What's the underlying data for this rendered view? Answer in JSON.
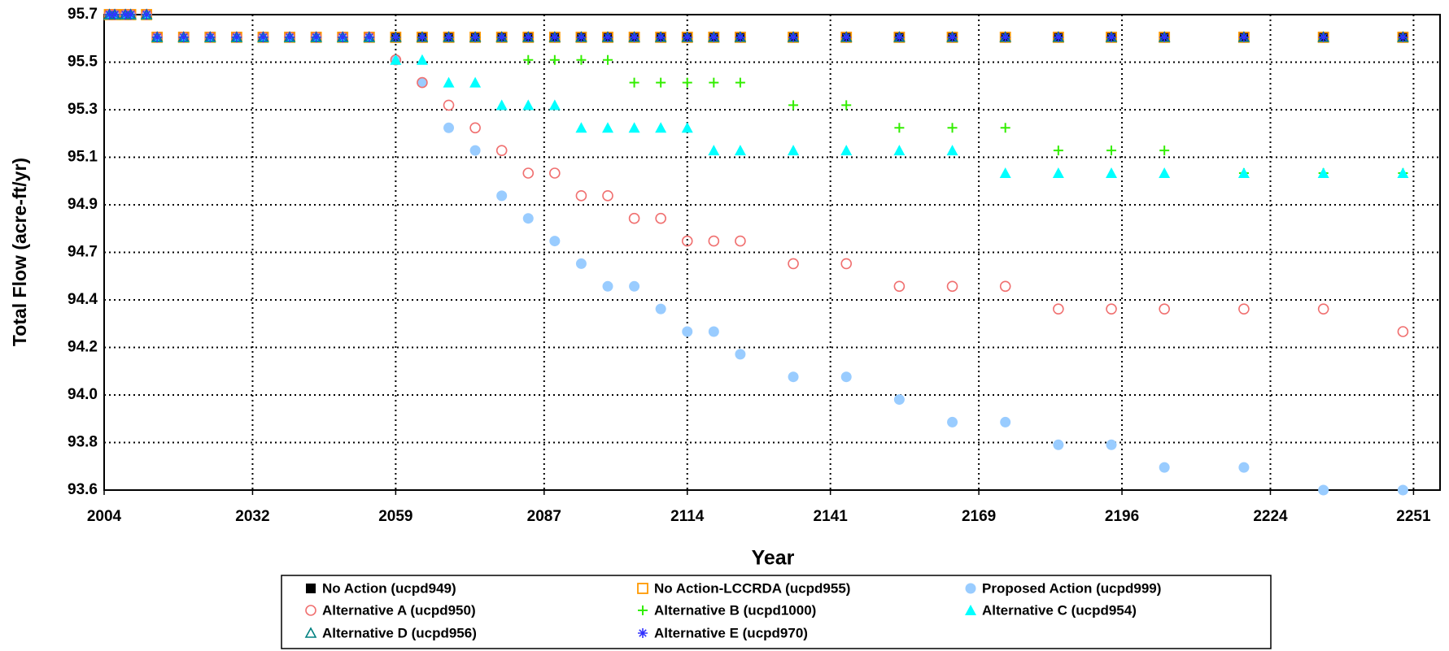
{
  "chart_data": {
    "type": "scatter",
    "x_label": "Year",
    "y_label": "Total Flow (acre-ft/yr)",
    "xlim": [
      2004,
      2256
    ],
    "ylim": [
      93.6,
      95.7
    ],
    "xticks": [
      2004,
      2032,
      2059,
      2087,
      2114,
      2141,
      2169,
      2196,
      2224,
      2251
    ],
    "yticks": [
      93.6,
      {
        "value": 93.81,
        "label": "93.8"
      },
      {
        "value": 94.02,
        "label": "94.0"
      },
      {
        "value": 94.23,
        "label": "94.2"
      },
      {
        "value": 94.44,
        "label": "94.4"
      },
      {
        "value": 94.65,
        "label": "94.7"
      },
      {
        "value": 94.86,
        "label": "94.9"
      },
      {
        "value": 95.07,
        "label": "95.1"
      },
      {
        "value": 95.28,
        "label": "95.3"
      },
      {
        "value": 95.49,
        "label": "95.5"
      },
      95.7
    ],
    "grid": true,
    "x": [
      2005,
      2006,
      2008,
      2009,
      2012,
      2014,
      2019,
      2024,
      2029,
      2034,
      2039,
      2044,
      2049,
      2054,
      2059,
      2064,
      2069,
      2074,
      2079,
      2084,
      2089,
      2094,
      2099,
      2104,
      2109,
      2114,
      2119,
      2124,
      2134,
      2144,
      2154,
      2164,
      2174,
      2184,
      2194,
      2204,
      2219,
      2234,
      2249
    ],
    "series": [
      {
        "name": "No Action (ucpd949)",
        "color": "#000000",
        "marker": "square",
        "values": [
          95.7,
          95.7,
          95.7,
          95.7,
          95.7,
          95.6,
          95.6,
          95.6,
          95.6,
          95.6,
          95.6,
          95.6,
          95.6,
          95.6,
          95.6,
          95.6,
          95.6,
          95.6,
          95.6,
          95.6,
          95.6,
          95.6,
          95.6,
          95.6,
          95.6,
          95.6,
          95.6,
          95.6,
          95.6,
          95.6,
          95.6,
          95.6,
          95.6,
          95.6,
          95.6,
          95.6,
          95.6,
          95.6,
          95.6
        ]
      },
      {
        "name": "No Action-LCCRDA (ucpd955)",
        "color": "#ff9900",
        "marker": "square-open",
        "values": [
          95.7,
          95.7,
          95.7,
          95.7,
          95.7,
          95.6,
          95.6,
          95.6,
          95.6,
          95.6,
          95.6,
          95.6,
          95.6,
          95.6,
          95.6,
          95.6,
          95.6,
          95.6,
          95.6,
          95.6,
          95.6,
          95.6,
          95.6,
          95.6,
          95.6,
          95.6,
          95.6,
          95.6,
          95.6,
          95.6,
          95.6,
          95.6,
          95.6,
          95.6,
          95.6,
          95.6,
          95.6,
          95.6,
          95.6
        ]
      },
      {
        "name": "Proposed Action (ucpd999)",
        "color": "#99ccff",
        "marker": "circle",
        "values": [
          95.7,
          95.7,
          95.7,
          95.7,
          95.7,
          95.6,
          95.6,
          95.6,
          95.6,
          95.6,
          95.6,
          95.6,
          95.6,
          95.6,
          95.5,
          95.4,
          95.2,
          95.1,
          94.9,
          94.8,
          94.7,
          94.6,
          94.5,
          94.5,
          94.4,
          94.3,
          94.3,
          94.2,
          94.1,
          94.1,
          94.0,
          93.9,
          93.9,
          93.8,
          93.8,
          93.7,
          93.7,
          93.6,
          93.6
        ]
      },
      {
        "name": "Alternative A (ucpd950)",
        "color": "#f07070",
        "marker": "circle-open",
        "values": [
          95.7,
          95.7,
          95.7,
          95.7,
          95.7,
          95.6,
          95.6,
          95.6,
          95.6,
          95.6,
          95.6,
          95.6,
          95.6,
          95.6,
          95.5,
          95.4,
          95.3,
          95.2,
          95.1,
          95.0,
          95.0,
          94.9,
          94.9,
          94.8,
          94.8,
          94.7,
          94.7,
          94.7,
          94.6,
          94.6,
          94.5,
          94.5,
          94.5,
          94.4,
          94.4,
          94.4,
          94.4,
          94.4,
          94.3
        ]
      },
      {
        "name": "Alternative B (ucpd1000)",
        "color": "#33ee00",
        "marker": "plus",
        "values": [
          95.7,
          95.7,
          95.7,
          95.7,
          95.7,
          95.6,
          95.6,
          95.6,
          95.6,
          95.6,
          95.6,
          95.6,
          95.6,
          95.6,
          95.6,
          95.6,
          95.6,
          95.6,
          95.6,
          95.5,
          95.5,
          95.5,
          95.5,
          95.4,
          95.4,
          95.4,
          95.4,
          95.4,
          95.3,
          95.3,
          95.2,
          95.2,
          95.2,
          95.1,
          95.1,
          95.1,
          95.0,
          95.0,
          95.0
        ]
      },
      {
        "name": "Alternative C (ucpd954)",
        "color": "#00ffff",
        "marker": "triangle",
        "values": [
          95.7,
          95.7,
          95.7,
          95.7,
          95.7,
          95.6,
          95.6,
          95.6,
          95.6,
          95.6,
          95.6,
          95.6,
          95.6,
          95.6,
          95.5,
          95.5,
          95.4,
          95.4,
          95.3,
          95.3,
          95.3,
          95.2,
          95.2,
          95.2,
          95.2,
          95.2,
          95.1,
          95.1,
          95.1,
          95.1,
          95.1,
          95.1,
          95.0,
          95.0,
          95.0,
          95.0,
          95.0,
          95.0,
          95.0
        ]
      },
      {
        "name": "Alternative D (ucpd956)",
        "color": "#008080",
        "marker": "triangle-open",
        "values": [
          95.7,
          95.7,
          95.7,
          95.7,
          95.7,
          95.6,
          95.6,
          95.6,
          95.6,
          95.6,
          95.6,
          95.6,
          95.6,
          95.6,
          95.6,
          95.6,
          95.6,
          95.6,
          95.6,
          95.6,
          95.6,
          95.6,
          95.6,
          95.6,
          95.6,
          95.6,
          95.6,
          95.6,
          95.6,
          95.6,
          95.6,
          95.6,
          95.6,
          95.6,
          95.6,
          95.6,
          95.6,
          95.6,
          95.6
        ]
      },
      {
        "name": "Alternative E (ucpd970)",
        "color": "#3333ff",
        "marker": "asterisk",
        "values": [
          95.7,
          95.7,
          95.7,
          95.7,
          95.7,
          95.6,
          95.6,
          95.6,
          95.6,
          95.6,
          95.6,
          95.6,
          95.6,
          95.6,
          95.6,
          95.6,
          95.6,
          95.6,
          95.6,
          95.6,
          95.6,
          95.6,
          95.6,
          95.6,
          95.6,
          95.6,
          95.6,
          95.6,
          95.6,
          95.6,
          95.6,
          95.6,
          95.6,
          95.6,
          95.6,
          95.6,
          95.6,
          95.6,
          95.6
        ]
      }
    ]
  }
}
